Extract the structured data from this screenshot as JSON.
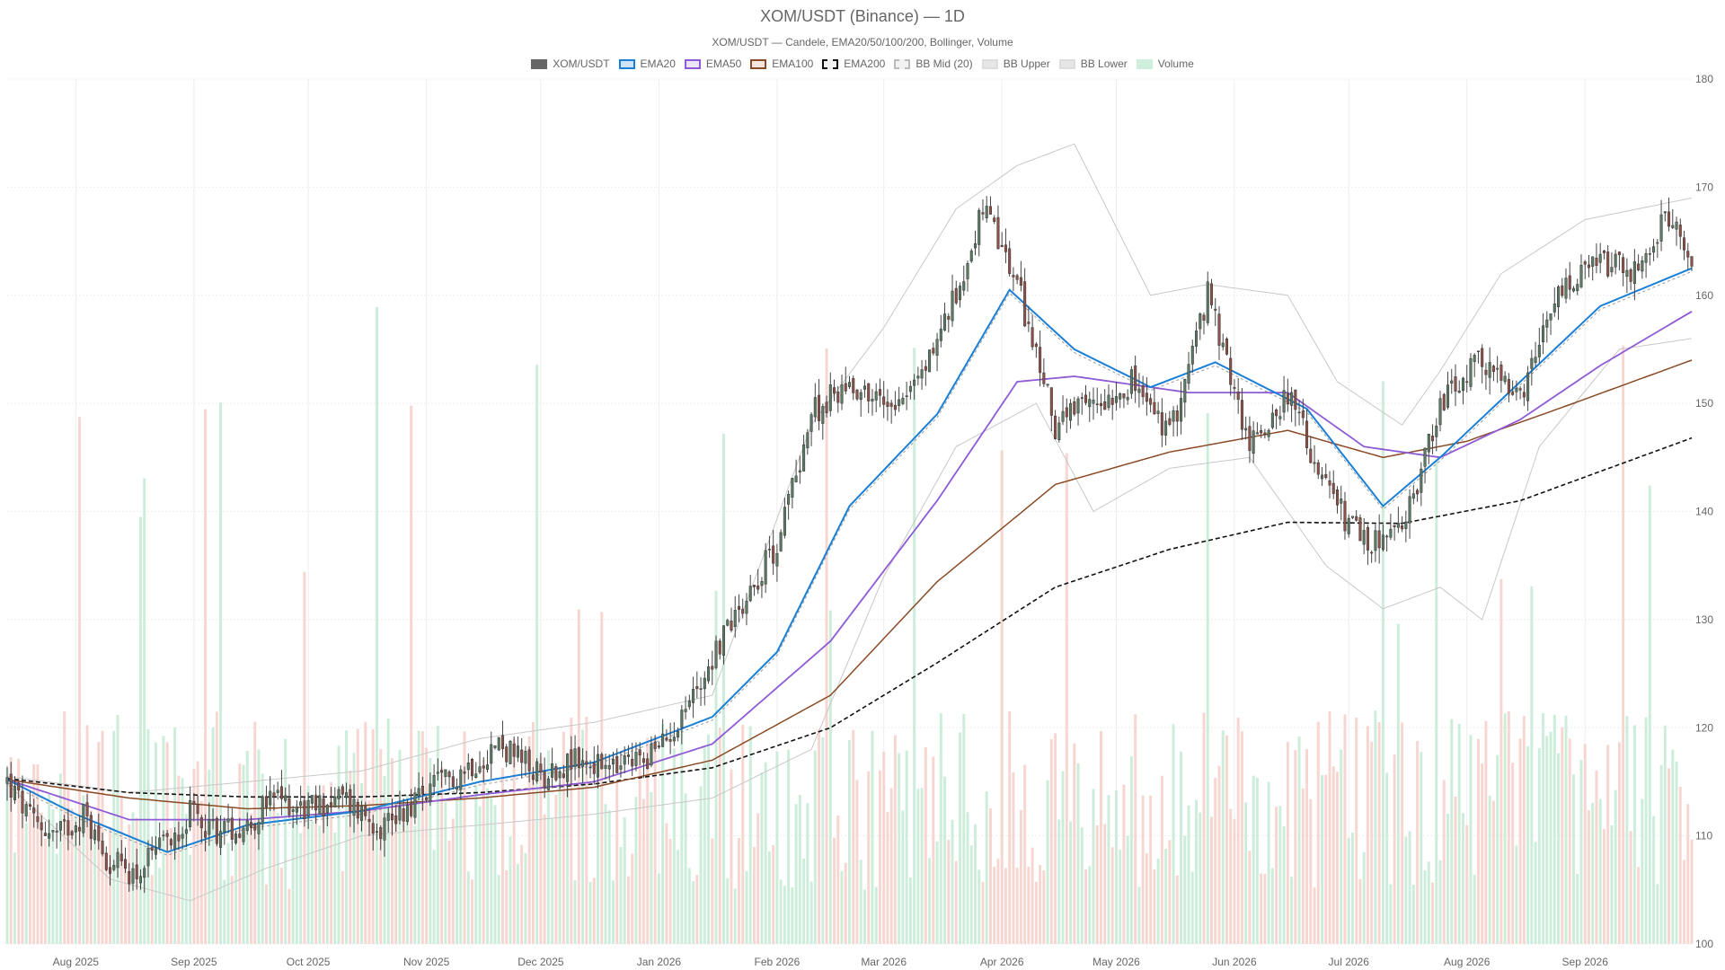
{
  "title": "XOM/USDT (Binance) — 1D",
  "subtitle": "XOM/USDT — Candele, EMA20/50/100/200, Bollinger, Volume",
  "legend": [
    {
      "label": "XOM/USDT",
      "fill": "#666666",
      "stroke": "#666666",
      "dash": false
    },
    {
      "label": "EMA20",
      "fill": "#cfe3f7",
      "stroke": "#1a7fd6",
      "dash": false
    },
    {
      "label": "EMA50",
      "fill": "#ece4f7",
      "stroke": "#8e5ad6",
      "dash": false
    },
    {
      "label": "EMA100",
      "fill": "#f3e7df",
      "stroke": "#8a4a25",
      "dash": false
    },
    {
      "label": "EMA200",
      "fill": "#f2f2f2",
      "stroke": "#111111",
      "dash": true
    },
    {
      "label": "BB Mid (20)",
      "fill": "#f2f2f2",
      "stroke": "#bbbbbb",
      "dash": true
    },
    {
      "label": "BB Upper",
      "fill": "#e6e6e6",
      "stroke": "#dddddd",
      "dash": false
    },
    {
      "label": "BB Lower",
      "fill": "#e6e6e6",
      "stroke": "#dddddd",
      "dash": false
    },
    {
      "label": "Volume",
      "fill": "#cfeedd",
      "stroke": "#cfeedd",
      "dash": false
    }
  ],
  "colors": {
    "up": "#5a7a64",
    "down": "#8e5148",
    "vol_up": "#c4ead5",
    "vol_down": "#f6cfc9",
    "ema20": "#1a7fd6",
    "ema50": "#8e5ad6",
    "ema100": "#8a4a25",
    "ema200": "#111111",
    "bb_mid": "#999999",
    "bb_band": "#c8c8c8",
    "grid": "#eeeeee"
  },
  "chart_data": {
    "type": "candlestick",
    "y_axis": {
      "min": 100,
      "max": 180,
      "side": "right",
      "ticks": [
        100,
        110,
        120,
        130,
        140,
        150,
        160,
        170,
        180
      ]
    },
    "x_axis": {
      "start": "2025-07-14",
      "end": "2026-09-29",
      "labels": [
        {
          "date": "2025-08-01",
          "label": "Aug 2025"
        },
        {
          "date": "2025-09-01",
          "label": "Sep 2025"
        },
        {
          "date": "2025-10-01",
          "label": "Oct 2025"
        },
        {
          "date": "2025-11-01",
          "label": "Nov 2025"
        },
        {
          "date": "2025-12-01",
          "label": "Dec 2025"
        },
        {
          "date": "2026-01-01",
          "label": "Jan 2026"
        },
        {
          "date": "2026-02-01",
          "label": "Feb 2026"
        },
        {
          "date": "2026-03-01",
          "label": "Mar 2026"
        },
        {
          "date": "2026-04-01",
          "label": "Apr 2026"
        },
        {
          "date": "2026-05-01",
          "label": "May 2026"
        },
        {
          "date": "2026-06-01",
          "label": "Jun 2026"
        },
        {
          "date": "2026-07-01",
          "label": "Jul 2026"
        },
        {
          "date": "2026-08-01",
          "label": "Aug 2026"
        },
        {
          "date": "2026-09-01",
          "label": "Sep 2026"
        }
      ]
    },
    "close_keypoints": [
      [
        "2025-07-14",
        115.0
      ],
      [
        "2025-07-20",
        111.5
      ],
      [
        "2025-07-27",
        110.0
      ],
      [
        "2025-08-03",
        112.0
      ],
      [
        "2025-08-10",
        107.5
      ],
      [
        "2025-08-17",
        106.5
      ],
      [
        "2025-08-24",
        109.0
      ],
      [
        "2025-08-31",
        112.0
      ],
      [
        "2025-09-07",
        110.5
      ],
      [
        "2025-09-15",
        111.0
      ],
      [
        "2025-09-22",
        113.5
      ],
      [
        "2025-10-01",
        112.5
      ],
      [
        "2025-10-10",
        113.5
      ],
      [
        "2025-10-20",
        111.0
      ],
      [
        "2025-11-01",
        114.0
      ],
      [
        "2025-11-10",
        116.0
      ],
      [
        "2025-11-20",
        118.5
      ],
      [
        "2025-12-01",
        115.5
      ],
      [
        "2025-12-10",
        117.0
      ],
      [
        "2025-12-20",
        116.0
      ],
      [
        "2026-01-01",
        118.0
      ],
      [
        "2026-01-10",
        123.0
      ],
      [
        "2026-01-20",
        130.0
      ],
      [
        "2026-02-01",
        137.0
      ],
      [
        "2026-02-10",
        149.0
      ],
      [
        "2026-02-20",
        152.0
      ],
      [
        "2026-03-01",
        150.0
      ],
      [
        "2026-03-10",
        152.0
      ],
      [
        "2026-03-20",
        160.0
      ],
      [
        "2026-03-27",
        168.0
      ],
      [
        "2026-04-05",
        161.0
      ],
      [
        "2026-04-15",
        148.0
      ],
      [
        "2026-04-25",
        150.0
      ],
      [
        "2026-05-05",
        152.0
      ],
      [
        "2026-05-15",
        147.0
      ],
      [
        "2026-05-25",
        160.0
      ],
      [
        "2026-06-05",
        146.0
      ],
      [
        "2026-06-15",
        151.0
      ],
      [
        "2026-06-25",
        142.0
      ],
      [
        "2026-07-05",
        137.0
      ],
      [
        "2026-07-15",
        138.0
      ],
      [
        "2026-07-25",
        150.0
      ],
      [
        "2026-08-05",
        154.0
      ],
      [
        "2026-08-15",
        150.0
      ],
      [
        "2026-08-25",
        160.0
      ],
      [
        "2026-09-05",
        163.0
      ],
      [
        "2026-09-15",
        162.0
      ],
      [
        "2026-09-22",
        167.0
      ],
      [
        "2026-09-29",
        163.5
      ]
    ],
    "ema20_keypoints": [
      [
        "2025-07-14",
        115.2
      ],
      [
        "2025-08-01",
        112.0
      ],
      [
        "2025-08-25",
        108.5
      ],
      [
        "2025-09-15",
        111.0
      ],
      [
        "2025-10-15",
        112.3
      ],
      [
        "2025-11-15",
        115.0
      ],
      [
        "2025-12-15",
        116.8
      ],
      [
        "2026-01-15",
        121.0
      ],
      [
        "2026-02-01",
        127.0
      ],
      [
        "2026-02-20",
        140.5
      ],
      [
        "2026-03-15",
        149.0
      ],
      [
        "2026-04-03",
        160.5
      ],
      [
        "2026-04-20",
        155.0
      ],
      [
        "2026-05-10",
        151.5
      ],
      [
        "2026-05-27",
        153.8
      ],
      [
        "2026-06-20",
        149.5
      ],
      [
        "2026-07-10",
        140.5
      ],
      [
        "2026-07-25",
        145.0
      ],
      [
        "2026-08-15",
        152.0
      ],
      [
        "2026-09-05",
        159.0
      ],
      [
        "2026-09-29",
        162.5
      ]
    ],
    "ema50_keypoints": [
      [
        "2025-07-14",
        115.2
      ],
      [
        "2025-08-15",
        111.5
      ],
      [
        "2025-09-15",
        111.5
      ],
      [
        "2025-10-15",
        112.3
      ],
      [
        "2025-11-15",
        113.8
      ],
      [
        "2025-12-15",
        115.0
      ],
      [
        "2026-01-15",
        118.5
      ],
      [
        "2026-02-15",
        128.0
      ],
      [
        "2026-03-15",
        141.0
      ],
      [
        "2026-04-05",
        152.0
      ],
      [
        "2026-04-20",
        152.5
      ],
      [
        "2026-05-20",
        151.0
      ],
      [
        "2026-06-15",
        151.0
      ],
      [
        "2026-07-05",
        146.0
      ],
      [
        "2026-07-25",
        145.0
      ],
      [
        "2026-08-15",
        148.5
      ],
      [
        "2026-09-05",
        153.5
      ],
      [
        "2026-09-29",
        158.5
      ]
    ],
    "ema100_keypoints": [
      [
        "2025-07-14",
        115.2
      ],
      [
        "2025-08-15",
        113.5
      ],
      [
        "2025-09-15",
        112.5
      ],
      [
        "2025-10-15",
        112.8
      ],
      [
        "2025-11-15",
        113.5
      ],
      [
        "2025-12-15",
        114.5
      ],
      [
        "2026-01-15",
        117.0
      ],
      [
        "2026-02-15",
        123.0
      ],
      [
        "2026-03-15",
        133.5
      ],
      [
        "2026-04-15",
        142.5
      ],
      [
        "2026-05-15",
        145.5
      ],
      [
        "2026-06-15",
        147.5
      ],
      [
        "2026-07-10",
        145.0
      ],
      [
        "2026-08-01",
        146.5
      ],
      [
        "2026-08-25",
        149.5
      ],
      [
        "2026-09-29",
        154.0
      ]
    ],
    "ema200_keypoints": [
      [
        "2025-07-14",
        115.3
      ],
      [
        "2025-08-15",
        114.0
      ],
      [
        "2025-09-15",
        113.6
      ],
      [
        "2025-10-15",
        113.6
      ],
      [
        "2025-11-15",
        114.0
      ],
      [
        "2025-12-15",
        114.8
      ],
      [
        "2026-01-15",
        116.3
      ],
      [
        "2026-02-15",
        120.0
      ],
      [
        "2026-03-15",
        126.0
      ],
      [
        "2026-04-15",
        133.0
      ],
      [
        "2026-05-15",
        136.5
      ],
      [
        "2026-06-15",
        139.0
      ],
      [
        "2026-07-15",
        138.9
      ],
      [
        "2026-08-15",
        141.0
      ],
      [
        "2026-09-29",
        146.8
      ]
    ],
    "bb_upper_keypoints": [
      [
        "2025-07-14",
        115.5
      ],
      [
        "2025-08-15",
        114.0
      ],
      [
        "2025-09-15",
        115.0
      ],
      [
        "2025-10-15",
        116.0
      ],
      [
        "2025-11-15",
        119.0
      ],
      [
        "2025-12-15",
        120.5
      ],
      [
        "2026-01-15",
        123.0
      ],
      [
        "2026-02-10",
        148.0
      ],
      [
        "2026-03-01",
        157.0
      ],
      [
        "2026-03-20",
        168.0
      ],
      [
        "2026-04-05",
        172.0
      ],
      [
        "2026-04-20",
        174.0
      ],
      [
        "2026-05-10",
        160.0
      ],
      [
        "2026-05-25",
        161.0
      ],
      [
        "2026-06-15",
        160.0
      ],
      [
        "2026-06-28",
        152.0
      ],
      [
        "2026-07-15",
        148.0
      ],
      [
        "2026-07-25",
        153.0
      ],
      [
        "2026-08-10",
        162.0
      ],
      [
        "2026-09-01",
        167.0
      ],
      [
        "2026-09-29",
        169.0
      ]
    ],
    "bb_lower_keypoints": [
      [
        "2025-07-14",
        114.8
      ],
      [
        "2025-08-10",
        106.0
      ],
      [
        "2025-08-31",
        104.0
      ],
      [
        "2025-09-20",
        107.0
      ],
      [
        "2025-10-15",
        110.0
      ],
      [
        "2025-11-15",
        111.0
      ],
      [
        "2025-12-15",
        112.0
      ],
      [
        "2026-01-15",
        113.5
      ],
      [
        "2026-02-10",
        118.0
      ],
      [
        "2026-03-01",
        134.0
      ],
      [
        "2026-03-20",
        146.0
      ],
      [
        "2026-04-10",
        150.0
      ],
      [
        "2026-04-25",
        140.0
      ],
      [
        "2026-05-15",
        144.0
      ],
      [
        "2026-06-05",
        145.0
      ],
      [
        "2026-06-25",
        135.0
      ],
      [
        "2026-07-10",
        131.0
      ],
      [
        "2026-07-25",
        133.0
      ],
      [
        "2026-08-05",
        130.0
      ],
      [
        "2026-08-20",
        146.0
      ],
      [
        "2026-09-10",
        155.0
      ],
      [
        "2026-09-29",
        156.0
      ]
    ],
    "volume_scale_note": "Volume bars share the plot area, drawn as translucent bars from the bottom."
  }
}
